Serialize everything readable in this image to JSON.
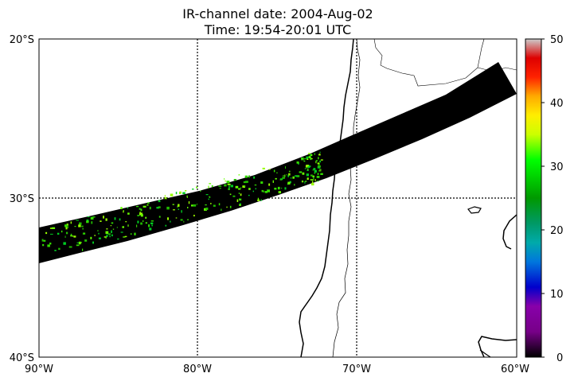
{
  "title_line1": "IR-channel date: 2004-Aug-02",
  "title_line2": "Time: 19:54-20:01 UTC",
  "map": {
    "lon_range": [
      -90,
      -60
    ],
    "lat_range": [
      -40,
      -20
    ],
    "lon_ticks": [
      "90°W",
      "80°W",
      "70°W",
      "60°W"
    ],
    "lat_ticks": [
      "20°S",
      "30°S",
      "40°S"
    ],
    "gridlines": "dotted",
    "swath_color": "#000000",
    "land_outline_color": "#000000"
  },
  "colorbar": {
    "min": 0,
    "max": 50,
    "ticks": [
      "0",
      "10",
      "20",
      "30",
      "40",
      "50"
    ],
    "colormap": "nipy_spectral",
    "stops": [
      "#000000",
      "#8800aa",
      "#0000cc",
      "#0099dd",
      "#00aa88",
      "#009900",
      "#00ff00",
      "#ccff00",
      "#ffcc00",
      "#ff3300",
      "#cc0000",
      "#cccccc"
    ]
  }
}
